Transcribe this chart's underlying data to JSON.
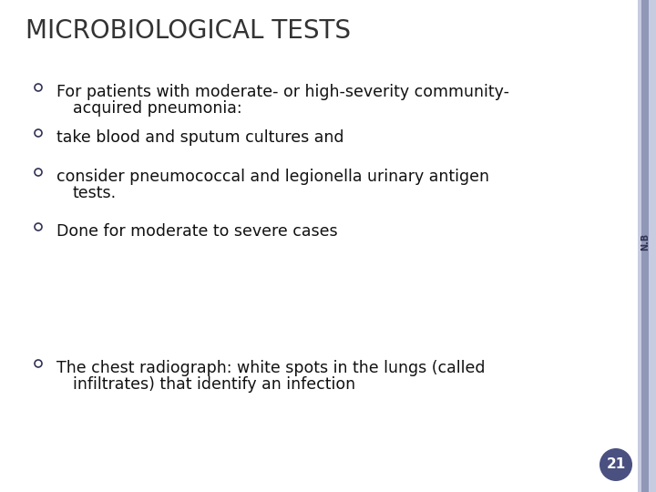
{
  "title": "MICROBIOLOGICAL TESTS",
  "title_fontsize": 20,
  "title_color": "#333333",
  "background_color": "#ffffff",
  "right_bar_color1": "#c8cce0",
  "right_bar_color2": "#9098b8",
  "right_bar_text": "N.B",
  "page_number": "21",
  "page_circle_color": "#4a5080",
  "bullet_color": "#333355",
  "text_color": "#111111",
  "text_fontsize": 12.5,
  "bullet_items": [
    [
      "For patients with moderate- or high-severity community-",
      "acquired pneumonia:"
    ],
    [
      "take blood and sputum cultures and"
    ],
    [
      "consider pneumococcal and legionella urinary antigen",
      "tests."
    ],
    [
      "Done for moderate to severe cases"
    ]
  ],
  "bullet2_items": [
    [
      "The chest radiograph: white spots in the lungs (called",
      "infiltrates) that identify an infection"
    ]
  ]
}
